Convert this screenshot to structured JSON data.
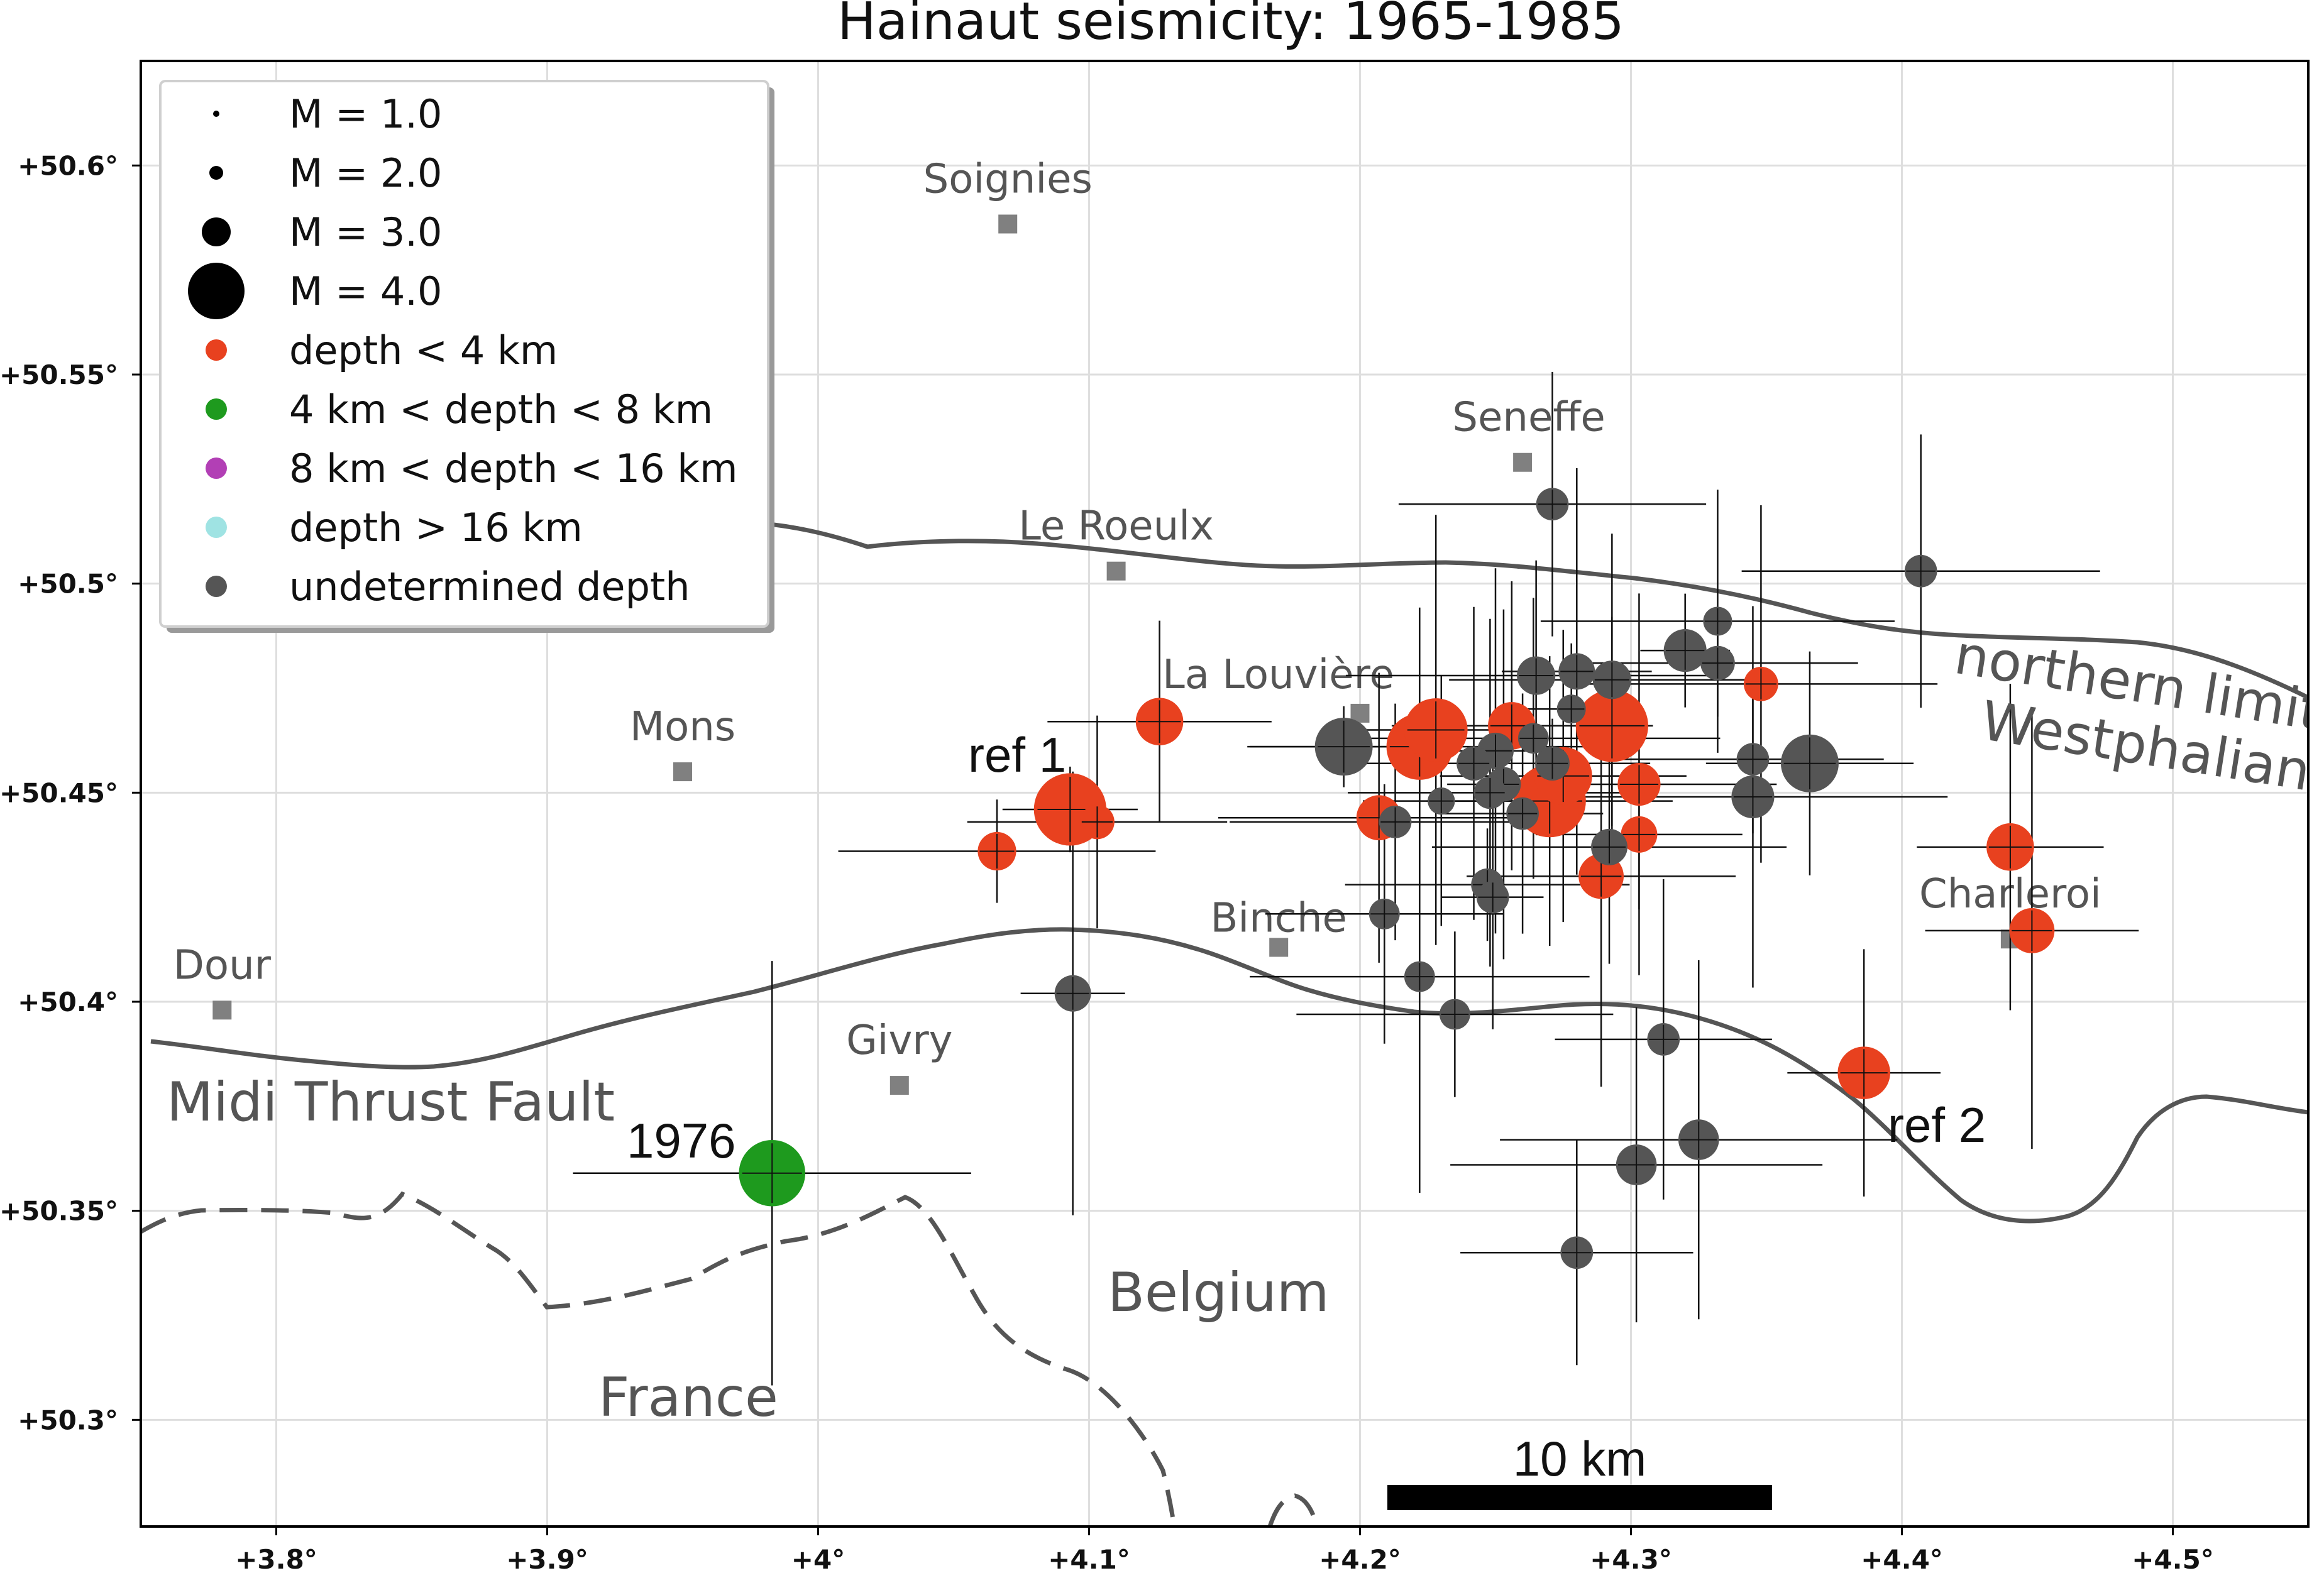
{
  "title": "Hainaut seismicity: 1965-1985",
  "axes": {
    "lon_ticks": [
      "+3.8°",
      "+3.9°",
      "+4°",
      "+4.1°",
      "+4.2°",
      "+4.3°",
      "+4.4°",
      "+4.5°"
    ],
    "lat_ticks": [
      "+50.6°",
      "+50.55°",
      "+50.5°",
      "+50.45°",
      "+50.4°",
      "+50.35°",
      "+50.3°"
    ]
  },
  "cities": [
    {
      "name": "Soignies",
      "lon": 4.07,
      "lat": 50.586
    },
    {
      "name": "Seneffe",
      "lon": 4.26,
      "lat": 50.529
    },
    {
      "name": "Le Roeulx",
      "lon": 4.11,
      "lat": 50.503
    },
    {
      "name": "La Louvière",
      "lon": 4.2,
      "lat": 50.469
    },
    {
      "name": "Mons",
      "lon": 3.95,
      "lat": 50.455
    },
    {
      "name": "Binche",
      "lon": 4.17,
      "lat": 50.413
    },
    {
      "name": "Charleroi",
      "lon": 4.44,
      "lat": 50.415
    },
    {
      "name": "Dour",
      "lon": 3.78,
      "lat": 50.398
    },
    {
      "name": "Givry",
      "lon": 4.03,
      "lat": 50.38
    }
  ],
  "region_labels": {
    "midi": "Midi Thrust Fault",
    "belgium": "Belgium",
    "france": "France",
    "northern_limit_1": "northern limit",
    "northern_limit_2": "Westphalian"
  },
  "annotations": {
    "ref1": "ref 1",
    "ref2": "ref 2",
    "y1976": "1976",
    "scale": "10 km"
  },
  "legend": {
    "items": [
      {
        "label": "M = 1.0",
        "kind": "size",
        "mag": 1.0
      },
      {
        "label": "M = 2.0",
        "kind": "size",
        "mag": 2.0
      },
      {
        "label": "M = 3.0",
        "kind": "size",
        "mag": 3.0
      },
      {
        "label": "M = 4.0",
        "kind": "size",
        "mag": 4.0
      },
      {
        "label": "depth < 4 km",
        "kind": "color",
        "color": "#e8411f"
      },
      {
        "label": "4 km < depth < 8 km",
        "kind": "color",
        "color": "#1e9a1e"
      },
      {
        "label": "8 km < depth < 16 km",
        "kind": "color",
        "color": "#b23fb5"
      },
      {
        "label": "depth > 16 km",
        "kind": "color",
        "color": "#9fe3e3"
      },
      {
        "label": "undetermined depth",
        "kind": "color",
        "color": "#555555"
      }
    ]
  },
  "colors": {
    "shallow": "#e8411f",
    "mid": "#1e9a1e",
    "undetermined": "#555555",
    "city": "#808080",
    "grid": "#dedede",
    "fault": "#555555"
  },
  "events": [
    {
      "lon": 4.093,
      "lat": 50.446,
      "mag": 4.0,
      "depth": "shallow"
    },
    {
      "lon": 4.066,
      "lat": 50.436,
      "mag": 2.7,
      "depth": "shallow"
    },
    {
      "lon": 4.103,
      "lat": 50.443,
      "mag": 2.5,
      "depth": "shallow"
    },
    {
      "lon": 4.126,
      "lat": 50.467,
      "mag": 3.1,
      "depth": "shallow"
    },
    {
      "lon": 4.228,
      "lat": 50.465,
      "mag": 3.7,
      "depth": "shallow"
    },
    {
      "lon": 4.222,
      "lat": 50.461,
      "mag": 3.8,
      "depth": "shallow"
    },
    {
      "lon": 4.207,
      "lat": 50.444,
      "mag": 3.0,
      "depth": "shallow"
    },
    {
      "lon": 4.256,
      "lat": 50.466,
      "mag": 3.1,
      "depth": "shallow"
    },
    {
      "lon": 4.275,
      "lat": 50.454,
      "mag": 3.5,
      "depth": "shallow"
    },
    {
      "lon": 4.27,
      "lat": 50.448,
      "mag": 4.0,
      "depth": "shallow"
    },
    {
      "lon": 4.293,
      "lat": 50.466,
      "mag": 4.0,
      "depth": "shallow"
    },
    {
      "lon": 4.289,
      "lat": 50.43,
      "mag": 3.0,
      "depth": "shallow"
    },
    {
      "lon": 4.303,
      "lat": 50.452,
      "mag": 2.9,
      "depth": "shallow"
    },
    {
      "lon": 4.303,
      "lat": 50.44,
      "mag": 2.6,
      "depth": "shallow"
    },
    {
      "lon": 4.348,
      "lat": 50.476,
      "mag": 2.5,
      "depth": "shallow"
    },
    {
      "lon": 4.44,
      "lat": 50.437,
      "mag": 3.1,
      "depth": "shallow"
    },
    {
      "lon": 4.448,
      "lat": 50.417,
      "mag": 3.0,
      "depth": "shallow"
    },
    {
      "lon": 4.386,
      "lat": 50.383,
      "mag": 3.3,
      "depth": "shallow"
    },
    {
      "lon": 3.983,
      "lat": 50.359,
      "mag": 3.8,
      "depth": "mid"
    },
    {
      "lon": 4.271,
      "lat": 50.519,
      "mag": 2.4,
      "depth": "undetermined"
    },
    {
      "lon": 4.407,
      "lat": 50.503,
      "mag": 2.4,
      "depth": "undetermined"
    },
    {
      "lon": 4.332,
      "lat": 50.491,
      "mag": 2.2,
      "depth": "undetermined"
    },
    {
      "lon": 4.32,
      "lat": 50.484,
      "mag": 2.9,
      "depth": "undetermined"
    },
    {
      "lon": 4.332,
      "lat": 50.481,
      "mag": 2.5,
      "depth": "undetermined"
    },
    {
      "lon": 4.265,
      "lat": 50.478,
      "mag": 2.7,
      "depth": "undetermined"
    },
    {
      "lon": 4.28,
      "lat": 50.479,
      "mag": 2.6,
      "depth": "undetermined"
    },
    {
      "lon": 4.293,
      "lat": 50.477,
      "mag": 2.7,
      "depth": "undetermined"
    },
    {
      "lon": 4.278,
      "lat": 50.47,
      "mag": 2.2,
      "depth": "undetermined"
    },
    {
      "lon": 4.264,
      "lat": 50.463,
      "mag": 2.3,
      "depth": "undetermined"
    },
    {
      "lon": 4.25,
      "lat": 50.46,
      "mag": 2.6,
      "depth": "undetermined"
    },
    {
      "lon": 4.194,
      "lat": 50.461,
      "mag": 3.5,
      "depth": "undetermined"
    },
    {
      "lon": 4.242,
      "lat": 50.457,
      "mag": 2.5,
      "depth": "undetermined"
    },
    {
      "lon": 4.271,
      "lat": 50.457,
      "mag": 2.5,
      "depth": "undetermined"
    },
    {
      "lon": 4.366,
      "lat": 50.457,
      "mag": 3.5,
      "depth": "undetermined"
    },
    {
      "lon": 4.345,
      "lat": 50.458,
      "mag": 2.4,
      "depth": "undetermined"
    },
    {
      "lon": 4.253,
      "lat": 50.452,
      "mag": 2.5,
      "depth": "undetermined"
    },
    {
      "lon": 4.248,
      "lat": 50.45,
      "mag": 2.4,
      "depth": "undetermined"
    },
    {
      "lon": 4.345,
      "lat": 50.449,
      "mag": 2.9,
      "depth": "undetermined"
    },
    {
      "lon": 4.23,
      "lat": 50.448,
      "mag": 2.1,
      "depth": "undetermined"
    },
    {
      "lon": 4.26,
      "lat": 50.445,
      "mag": 2.4,
      "depth": "undetermined"
    },
    {
      "lon": 4.213,
      "lat": 50.443,
      "mag": 2.4,
      "depth": "undetermined"
    },
    {
      "lon": 4.292,
      "lat": 50.437,
      "mag": 2.6,
      "depth": "undetermined"
    },
    {
      "lon": 4.247,
      "lat": 50.428,
      "mag": 2.4,
      "depth": "undetermined"
    },
    {
      "lon": 4.249,
      "lat": 50.425,
      "mag": 2.4,
      "depth": "undetermined"
    },
    {
      "lon": 4.209,
      "lat": 50.421,
      "mag": 2.3,
      "depth": "undetermined"
    },
    {
      "lon": 4.222,
      "lat": 50.406,
      "mag": 2.3,
      "depth": "undetermined"
    },
    {
      "lon": 4.235,
      "lat": 50.397,
      "mag": 2.3,
      "depth": "undetermined"
    },
    {
      "lon": 4.094,
      "lat": 50.402,
      "mag": 2.6,
      "depth": "undetermined"
    },
    {
      "lon": 4.312,
      "lat": 50.391,
      "mag": 2.4,
      "depth": "undetermined"
    },
    {
      "lon": 4.325,
      "lat": 50.367,
      "mag": 2.8,
      "depth": "undetermined"
    },
    {
      "lon": 4.302,
      "lat": 50.361,
      "mag": 2.8,
      "depth": "undetermined"
    },
    {
      "lon": 4.28,
      "lat": 50.34,
      "mag": 2.4,
      "depth": "undetermined"
    }
  ]
}
